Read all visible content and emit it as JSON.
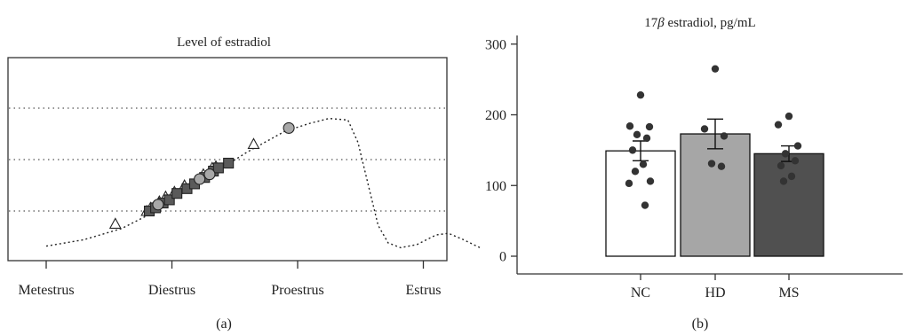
{
  "panel_labels": {
    "a": "(a)",
    "b": "(b)"
  },
  "colors": {
    "text": "#222222",
    "axis": "#333333",
    "curve": "#222222",
    "grid": "#555555",
    "nc_fill": "#ffffff",
    "hd_fill": "#a6a6a6",
    "ms_fill": "#505050",
    "dot": "#333333",
    "circle_marker": "#a8a8a8",
    "square_marker": "#5a5a5a"
  },
  "chart_data": [
    {
      "type": "line",
      "title": "Level of estradiol",
      "x_categories": [
        "Metestrus",
        "Diestrus",
        "Proestrus",
        "Estrus"
      ],
      "grid": "horizontal dotted",
      "series": [
        {
          "marker": "curve",
          "style": "dotted",
          "points": [
            [
              0,
              0.03
            ],
            [
              0.3,
              0.07
            ],
            [
              0.6,
              0.14
            ],
            [
              0.8,
              0.22
            ],
            [
              1.0,
              0.32
            ],
            [
              1.3,
              0.47
            ],
            [
              1.6,
              0.62
            ],
            [
              1.9,
              0.75
            ],
            [
              2.1,
              0.8
            ],
            [
              2.25,
              0.83
            ],
            [
              2.4,
              0.82
            ],
            [
              2.48,
              0.68
            ],
            [
              2.56,
              0.42
            ],
            [
              2.64,
              0.16
            ],
            [
              2.72,
              0.05
            ],
            [
              2.82,
              0.02
            ],
            [
              2.95,
              0.04
            ],
            [
              3.1,
              0.1
            ],
            [
              3.2,
              0.11
            ],
            [
              3.32,
              0.07
            ],
            [
              3.45,
              0.02
            ]
          ]
        },
        {
          "marker": "triangle",
          "points": [
            [
              0.55,
              0.17
            ],
            [
              0.8,
              0.25
            ],
            [
              0.83,
              0.27
            ],
            [
              0.9,
              0.31
            ],
            [
              0.95,
              0.34
            ],
            [
              1.02,
              0.37
            ],
            [
              1.1,
              0.41
            ],
            [
              1.25,
              0.48
            ],
            [
              1.32,
              0.52
            ],
            [
              1.35,
              0.53
            ],
            [
              1.65,
              0.67
            ]
          ]
        },
        {
          "marker": "square",
          "points": [
            [
              0.82,
              0.25
            ],
            [
              0.87,
              0.27
            ],
            [
              0.93,
              0.3
            ],
            [
              0.98,
              0.32
            ],
            [
              1.04,
              0.36
            ],
            [
              1.12,
              0.39
            ],
            [
              1.18,
              0.42
            ],
            [
              1.26,
              0.46
            ],
            [
              1.33,
              0.5
            ],
            [
              1.37,
              0.52
            ],
            [
              1.45,
              0.55
            ]
          ]
        },
        {
          "marker": "circle",
          "points": [
            [
              0.89,
              0.29
            ],
            [
              1.22,
              0.45
            ],
            [
              1.3,
              0.48
            ],
            [
              1.93,
              0.77
            ]
          ]
        }
      ]
    },
    {
      "type": "bar",
      "title": "17β estradiol, pg/mL",
      "title_parts": {
        "number": "17",
        "symbol": "β",
        "rest": " estradiol, pg/mL"
      },
      "categories": [
        "NC",
        "HD",
        "MS"
      ],
      "values": [
        149,
        173,
        145
      ],
      "errors": [
        14,
        21,
        11
      ],
      "ylim": [
        0,
        310
      ],
      "yticks": [
        0,
        100,
        200,
        300
      ],
      "points": [
        [
          228,
          184,
          183,
          172,
          167,
          150,
          130,
          120,
          106,
          103,
          72
        ],
        [
          265,
          180,
          170,
          131,
          127
        ],
        [
          198,
          186,
          156,
          145,
          135,
          128,
          113,
          106
        ]
      ]
    }
  ]
}
